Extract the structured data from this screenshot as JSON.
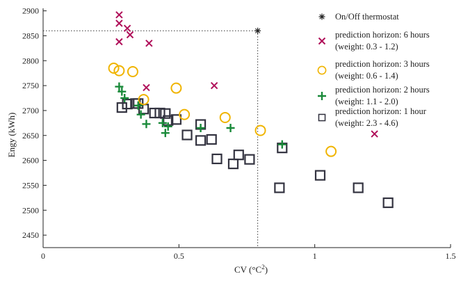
{
  "chart_data": {
    "type": "scatter",
    "xlabel": "CV (°C",
    "xlabel_sup": "2",
    "xlabel_close": ")",
    "ylabel": "Engy (kWh)",
    "xlim": [
      0,
      1.5
    ],
    "ylim": [
      2425,
      2905
    ],
    "x_ticks": [
      {
        "v": 0,
        "label": "0"
      },
      {
        "v": 0.5,
        "label": "0.5"
      },
      {
        "v": 1,
        "label": "1"
      },
      {
        "v": 1.5,
        "label": "1.5"
      }
    ],
    "y_ticks": [
      2450,
      2500,
      2550,
      2600,
      2650,
      2700,
      2750,
      2800,
      2850,
      2900
    ],
    "grid": false,
    "legend_position": "top-right",
    "reference_lines": {
      "x": 0.79,
      "y": 2860
    },
    "series": [
      {
        "name": "On/Off thermostat",
        "marker": "asterisk",
        "color": "#222222",
        "points": [
          [
            0.79,
            2860
          ]
        ]
      },
      {
        "name": "prediction horizon: 6 hours",
        "subname": "(weight: 0.3 - 1.2)",
        "marker": "x",
        "color": "#b0105a",
        "points": [
          [
            0.28,
            2892
          ],
          [
            0.28,
            2875
          ],
          [
            0.31,
            2865
          ],
          [
            0.32,
            2852
          ],
          [
            0.28,
            2838
          ],
          [
            0.39,
            2835
          ],
          [
            0.38,
            2746
          ],
          [
            0.63,
            2750
          ],
          [
            1.22,
            2653
          ]
        ]
      },
      {
        "name": "prediction horizon: 3 hours",
        "subname": "(weight: 0.6 - 1.4)",
        "marker": "circle",
        "color": "#f0b400",
        "points": [
          [
            0.26,
            2785
          ],
          [
            0.28,
            2780
          ],
          [
            0.33,
            2778
          ],
          [
            0.49,
            2745
          ],
          [
            0.37,
            2722
          ],
          [
            0.52,
            2692
          ],
          [
            0.67,
            2686
          ],
          [
            0.8,
            2660
          ],
          [
            1.06,
            2618
          ]
        ]
      },
      {
        "name": "prediction horizon: 2 hours",
        "subname": "(weight: 1.1 - 2.0)",
        "marker": "plus",
        "color": "#1a8a3a",
        "points": [
          [
            0.28,
            2748
          ],
          [
            0.29,
            2738
          ],
          [
            0.3,
            2725
          ],
          [
            0.35,
            2710
          ],
          [
            0.36,
            2692
          ],
          [
            0.38,
            2673
          ],
          [
            0.44,
            2675
          ],
          [
            0.46,
            2668
          ],
          [
            0.45,
            2655
          ],
          [
            0.58,
            2665
          ],
          [
            0.69,
            2665
          ],
          [
            0.88,
            2632
          ]
        ]
      },
      {
        "name": "prediction horizon: 1 hour",
        "subname": "(weight: 2.3 - 4.6)",
        "marker": "square",
        "color": "#333340",
        "points": [
          [
            0.29,
            2706
          ],
          [
            0.31,
            2713
          ],
          [
            0.34,
            2714
          ],
          [
            0.35,
            2714
          ],
          [
            0.37,
            2703
          ],
          [
            0.41,
            2695
          ],
          [
            0.43,
            2695
          ],
          [
            0.45,
            2694
          ],
          [
            0.46,
            2680
          ],
          [
            0.49,
            2682
          ],
          [
            0.53,
            2651
          ],
          [
            0.58,
            2672
          ],
          [
            0.58,
            2640
          ],
          [
            0.62,
            2642
          ],
          [
            0.64,
            2603
          ],
          [
            0.7,
            2593
          ],
          [
            0.72,
            2611
          ],
          [
            0.76,
            2602
          ],
          [
            0.87,
            2545
          ],
          [
            0.88,
            2625
          ],
          [
            1.02,
            2570
          ],
          [
            1.16,
            2545
          ],
          [
            1.27,
            2515
          ]
        ]
      }
    ]
  }
}
